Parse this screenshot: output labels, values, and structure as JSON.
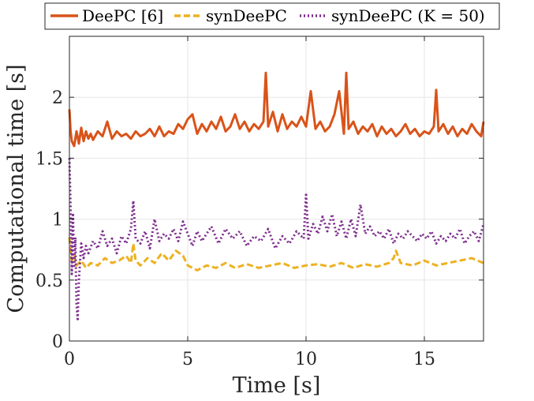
{
  "chart_data": {
    "type": "line",
    "title": "",
    "xlabel": "Time [s]",
    "ylabel": "Computational time [s]",
    "xlim": [
      0,
      17.5
    ],
    "ylim": [
      0,
      2.5
    ],
    "xticks": [
      0,
      5,
      10,
      15
    ],
    "yticks": [
      0,
      0.5,
      1,
      1.5,
      2
    ],
    "xtick_labels": [
      "0",
      "5",
      "10",
      "15"
    ],
    "ytick_labels": [
      "0",
      "0.5",
      "1",
      "1.5",
      "2"
    ],
    "grid": true,
    "legend_position": "top",
    "series": [
      {
        "name": "DeePC [6]",
        "color": "#D95319",
        "style": "solid",
        "x": [
          0,
          0.05,
          0.1,
          0.2,
          0.3,
          0.4,
          0.5,
          0.6,
          0.7,
          0.8,
          0.9,
          1.0,
          1.2,
          1.4,
          1.6,
          1.8,
          2.0,
          2.2,
          2.4,
          2.6,
          2.8,
          3.0,
          3.2,
          3.4,
          3.6,
          3.8,
          4.0,
          4.2,
          4.4,
          4.6,
          4.8,
          5.0,
          5.2,
          5.4,
          5.6,
          5.8,
          6.0,
          6.2,
          6.4,
          6.6,
          6.8,
          7.0,
          7.2,
          7.4,
          7.6,
          7.8,
          8.0,
          8.2,
          8.3,
          8.4,
          8.6,
          8.8,
          9.0,
          9.2,
          9.4,
          9.6,
          9.8,
          10.0,
          10.2,
          10.4,
          10.6,
          10.8,
          11.0,
          11.2,
          11.4,
          11.6,
          11.7,
          11.8,
          12.0,
          12.2,
          12.4,
          12.6,
          12.8,
          13.0,
          13.2,
          13.4,
          13.6,
          13.8,
          14.0,
          14.2,
          14.4,
          14.6,
          14.8,
          15.0,
          15.2,
          15.4,
          15.5,
          15.6,
          15.8,
          16.0,
          16.2,
          16.4,
          16.6,
          16.8,
          17.0,
          17.2,
          17.4,
          17.5
        ],
        "y": [
          1.9,
          1.72,
          1.64,
          1.6,
          1.72,
          1.62,
          1.75,
          1.64,
          1.72,
          1.66,
          1.7,
          1.65,
          1.72,
          1.68,
          1.8,
          1.66,
          1.72,
          1.68,
          1.7,
          1.66,
          1.72,
          1.68,
          1.7,
          1.74,
          1.68,
          1.76,
          1.68,
          1.72,
          1.7,
          1.78,
          1.74,
          1.82,
          1.86,
          1.7,
          1.78,
          1.72,
          1.8,
          1.74,
          1.84,
          1.72,
          1.76,
          1.86,
          1.74,
          1.8,
          1.72,
          1.78,
          1.74,
          1.8,
          2.2,
          1.76,
          1.88,
          1.72,
          1.86,
          1.74,
          1.8,
          1.76,
          1.84,
          1.76,
          2.05,
          1.74,
          1.8,
          1.72,
          1.76,
          1.86,
          2.05,
          1.7,
          2.2,
          1.74,
          1.8,
          1.7,
          1.76,
          1.72,
          1.78,
          1.68,
          1.76,
          1.7,
          1.74,
          1.68,
          1.72,
          1.78,
          1.7,
          1.74,
          1.68,
          1.72,
          1.7,
          1.76,
          2.06,
          1.72,
          1.78,
          1.7,
          1.76,
          1.68,
          1.74,
          1.7,
          1.78,
          1.72,
          1.68,
          1.8
        ]
      },
      {
        "name": "synDeePC",
        "color": "#EDB120",
        "style": "dashed",
        "x": [
          0,
          0.05,
          0.1,
          0.2,
          0.3,
          0.5,
          0.7,
          0.9,
          1.2,
          1.5,
          1.8,
          2.1,
          2.4,
          2.6,
          2.7,
          2.8,
          3.0,
          3.3,
          3.6,
          3.9,
          4.2,
          4.5,
          4.8,
          5.0,
          5.4,
          5.8,
          6.2,
          6.6,
          7.0,
          7.5,
          8.0,
          8.5,
          9.0,
          9.5,
          10.0,
          10.5,
          11.0,
          11.5,
          12.0,
          12.5,
          13.0,
          13.5,
          13.7,
          13.8,
          14.0,
          14.5,
          15.0,
          15.5,
          16.0,
          16.5,
          17.0,
          17.5
        ],
        "y": [
          0.85,
          0.72,
          0.66,
          0.7,
          0.62,
          0.66,
          0.6,
          0.64,
          0.62,
          0.68,
          0.64,
          0.66,
          0.7,
          0.64,
          0.8,
          0.66,
          0.62,
          0.68,
          0.64,
          0.72,
          0.66,
          0.74,
          0.7,
          0.62,
          0.58,
          0.62,
          0.6,
          0.64,
          0.6,
          0.63,
          0.6,
          0.62,
          0.64,
          0.6,
          0.62,
          0.63,
          0.61,
          0.64,
          0.6,
          0.63,
          0.61,
          0.64,
          0.68,
          0.74,
          0.64,
          0.62,
          0.66,
          0.62,
          0.64,
          0.66,
          0.68,
          0.64
        ]
      },
      {
        "name": "synDeePC (K = 50)",
        "color": "#7E2F8E",
        "style": "dotted",
        "x": [
          0,
          0.05,
          0.1,
          0.15,
          0.2,
          0.25,
          0.3,
          0.35,
          0.4,
          0.5,
          0.6,
          0.7,
          0.8,
          1.0,
          1.2,
          1.4,
          1.6,
          1.8,
          2.0,
          2.2,
          2.4,
          2.6,
          2.7,
          2.8,
          3.0,
          3.2,
          3.4,
          3.6,
          3.8,
          4.0,
          4.2,
          4.4,
          4.6,
          4.8,
          5.0,
          5.2,
          5.4,
          5.6,
          5.8,
          6.0,
          6.3,
          6.6,
          6.9,
          7.2,
          7.5,
          7.8,
          8.1,
          8.4,
          8.7,
          9.0,
          9.3,
          9.6,
          9.9,
          10.0,
          10.1,
          10.3,
          10.5,
          10.7,
          10.9,
          11.1,
          11.3,
          11.5,
          11.7,
          11.9,
          12.1,
          12.3,
          12.5,
          12.7,
          12.9,
          13.1,
          13.3,
          13.5,
          13.7,
          13.9,
          14.1,
          14.3,
          14.5,
          14.7,
          14.9,
          15.1,
          15.3,
          15.5,
          15.7,
          15.9,
          16.1,
          16.3,
          16.5,
          16.7,
          16.9,
          17.1,
          17.3,
          17.5
        ],
        "y": [
          1.5,
          1.1,
          0.55,
          1.05,
          0.6,
          0.85,
          0.3,
          0.18,
          0.5,
          0.8,
          0.68,
          0.78,
          0.72,
          0.82,
          0.76,
          0.9,
          0.78,
          0.84,
          0.72,
          0.86,
          0.8,
          0.92,
          1.15,
          0.84,
          0.8,
          0.9,
          0.76,
          1.0,
          0.82,
          0.88,
          0.84,
          0.92,
          0.82,
          0.98,
          0.88,
          0.78,
          0.9,
          0.82,
          0.88,
          0.94,
          0.8,
          0.92,
          0.84,
          0.9,
          0.78,
          0.86,
          0.82,
          0.92,
          0.76,
          0.86,
          0.8,
          0.9,
          0.84,
          1.2,
          0.84,
          0.96,
          0.88,
          1.02,
          0.9,
          1.04,
          0.86,
          0.98,
          0.84,
          1.0,
          0.86,
          1.12,
          0.88,
          0.94,
          0.86,
          0.9,
          0.84,
          0.92,
          0.8,
          0.88,
          0.84,
          0.9,
          0.86,
          0.82,
          0.88,
          0.84,
          0.9,
          0.8,
          0.86,
          0.82,
          0.88,
          0.84,
          0.92,
          0.8,
          0.86,
          0.9,
          0.82,
          0.96
        ]
      }
    ]
  }
}
